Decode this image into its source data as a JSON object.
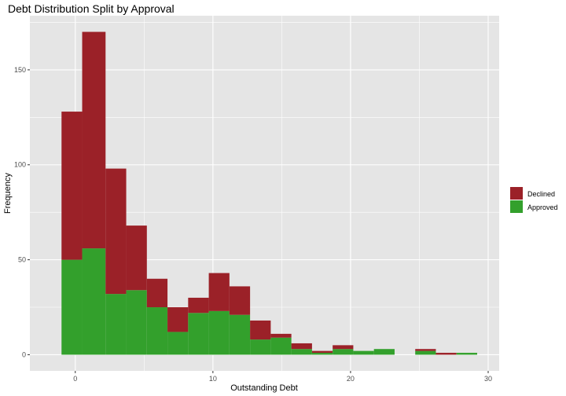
{
  "chart_data": {
    "type": "bar",
    "stacked": true,
    "title": "Debt Distribution Split by Approval",
    "xlabel": "Outstanding Debt",
    "ylabel": "Frequency",
    "xlim": [
      -3.3,
      30.8
    ],
    "ylim": [
      -8.5,
      178.5
    ],
    "xticks": [
      0,
      10,
      20,
      30
    ],
    "yticks": [
      0,
      50,
      100,
      150
    ],
    "grid": true,
    "legend_position": "right",
    "colors": {
      "panel_bg": "#e5e5e5",
      "grid": "#ffffff",
      "declined": "#9b2128",
      "approved": "#33a02c"
    },
    "bins": [
      [
        -1.0,
        0.5
      ],
      [
        0.5,
        2.2
      ],
      [
        2.2,
        3.7
      ],
      [
        3.7,
        5.2
      ],
      [
        5.2,
        6.7
      ],
      [
        6.7,
        8.2
      ],
      [
        8.2,
        9.7
      ],
      [
        9.7,
        11.2
      ],
      [
        11.2,
        12.7
      ],
      [
        12.7,
        14.2
      ],
      [
        14.2,
        15.7
      ],
      [
        15.7,
        17.2
      ],
      [
        17.2,
        18.7
      ],
      [
        18.7,
        20.2
      ],
      [
        20.2,
        21.7
      ],
      [
        21.7,
        23.2
      ],
      [
        23.2,
        24.7
      ],
      [
        24.7,
        26.2
      ],
      [
        26.2,
        27.7
      ],
      [
        27.7,
        29.2
      ]
    ],
    "series": [
      {
        "name": "Approved",
        "color": "#33a02c",
        "values": [
          50,
          56,
          32,
          34,
          25,
          12,
          22,
          23,
          21,
          8,
          9,
          3,
          1,
          3,
          2,
          3,
          0,
          2,
          0,
          1
        ]
      },
      {
        "name": "Declined",
        "color": "#9b2128",
        "values": [
          78,
          114,
          66,
          34,
          15,
          13,
          8,
          20,
          15,
          10,
          2,
          3,
          1,
          2,
          0,
          0,
          0,
          1,
          1,
          0
        ]
      }
    ],
    "totals": [
      128,
      170,
      98,
      68,
      40,
      25,
      30,
      43,
      36,
      18,
      11,
      6,
      2,
      5,
      2,
      3,
      0,
      3,
      1,
      1
    ],
    "legend": [
      {
        "label": "Declined",
        "color": "#9b2128"
      },
      {
        "label": "Approved",
        "color": "#33a02c"
      }
    ]
  }
}
